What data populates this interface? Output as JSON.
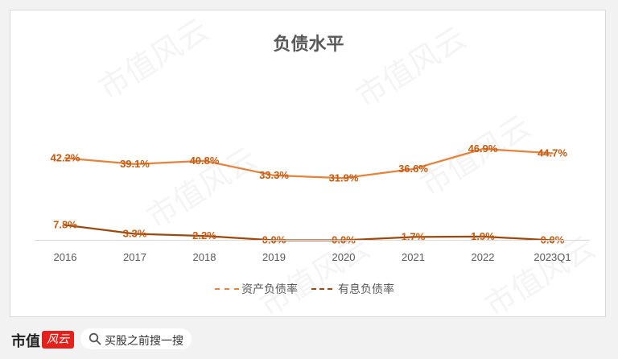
{
  "chart_data": {
    "type": "line",
    "title": "负债水平",
    "categories": [
      "2016",
      "2017",
      "2018",
      "2019",
      "2020",
      "2021",
      "2022",
      "2023Q1"
    ],
    "series": [
      {
        "name": "资产负债率",
        "values": [
          42.2,
          39.1,
          40.8,
          33.3,
          31.9,
          36.6,
          46.9,
          44.7
        ],
        "labels": [
          "42.2%",
          "39.1%",
          "40.8%",
          "33.3%",
          "31.9%",
          "36.6%",
          "46.9%",
          "44.7%"
        ],
        "color": "#e8823a"
      },
      {
        "name": "有息负债率",
        "values": [
          7.8,
          3.3,
          2.2,
          0.0,
          0.0,
          1.7,
          1.9,
          0.0
        ],
        "labels": [
          "7.8%",
          "3.3%",
          "2.2%",
          "0.0%",
          "0.0%",
          "1.7%",
          "1.9%",
          "0.0%"
        ],
        "color": "#9e480e"
      }
    ],
    "ylim": [
      0,
      55
    ],
    "grid": false,
    "legend": "bottom",
    "line_style": "solid with markers-free",
    "label_color": "#c55a11"
  },
  "watermark": "市值风云",
  "footer": {
    "brand": "市值",
    "badge": "风云",
    "search_placeholder": "买股之前搜一搜"
  }
}
